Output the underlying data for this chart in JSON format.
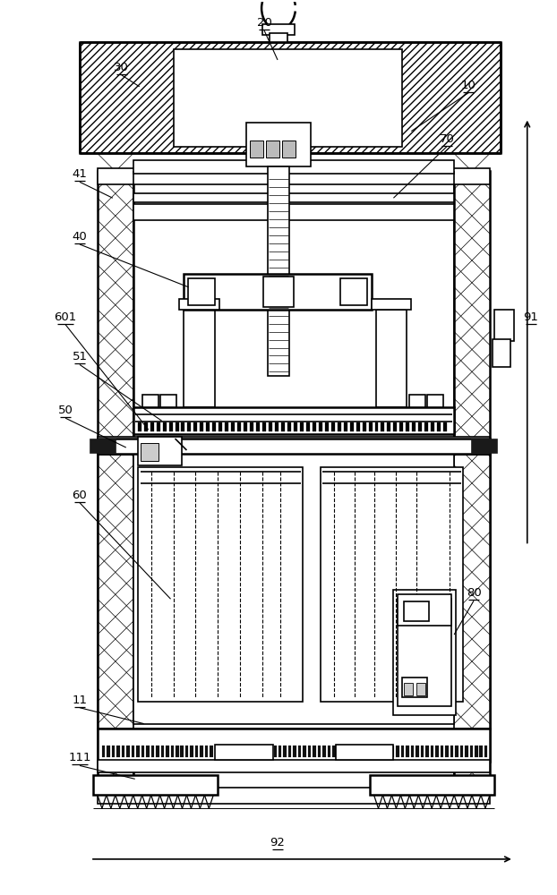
{
  "fig_width": 6.22,
  "fig_height": 10.0,
  "bg_color": "#ffffff",
  "line_color": "#000000"
}
